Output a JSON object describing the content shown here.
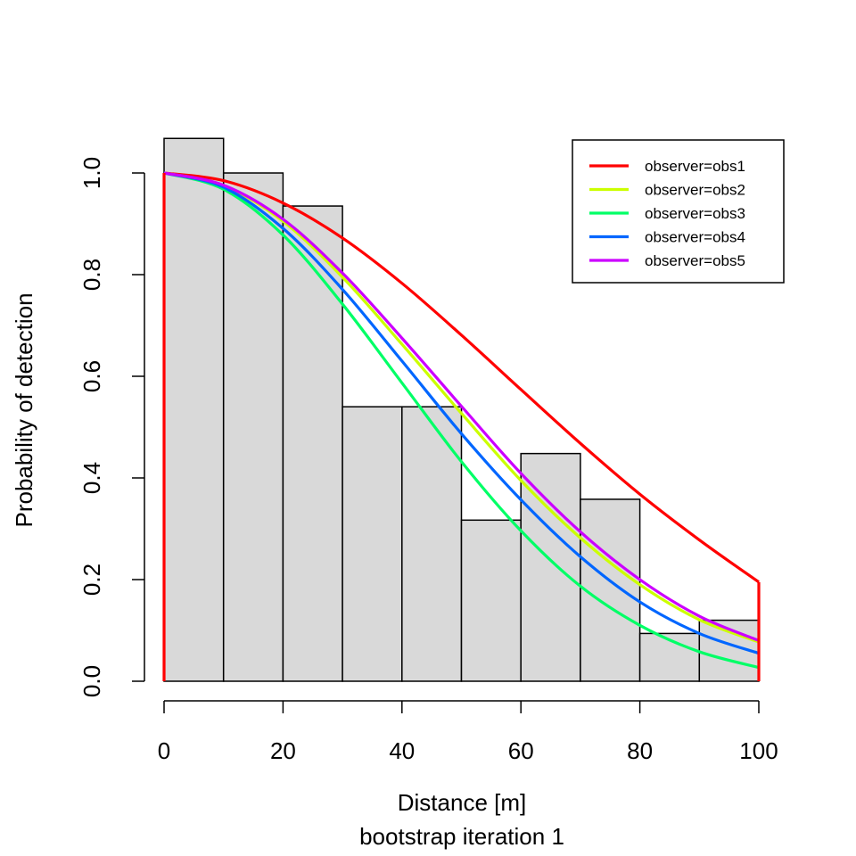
{
  "chart_data": {
    "type": "bar",
    "xlabel": "Distance [m]",
    "subtitle": "bootstrap iteration 1",
    "ylabel": "Probability of detection",
    "xlim": [
      0,
      100
    ],
    "ylim": [
      0,
      1.0
    ],
    "xticks": [
      "0",
      "20",
      "40",
      "60",
      "80",
      "100"
    ],
    "yticks": [
      "0.0",
      "0.2",
      "0.4",
      "0.6",
      "0.8",
      "1.0"
    ],
    "grid": false,
    "legend_position": "top-right",
    "histogram": {
      "bin_edges": [
        0,
        10,
        20,
        30,
        40,
        50,
        60,
        70,
        80,
        90,
        100
      ],
      "values": [
        1.068,
        1.0,
        0.935,
        0.54,
        0.54,
        0.317,
        0.448,
        0.358,
        0.094,
        0.12
      ],
      "fill": "#d9d9d9"
    },
    "series": [
      {
        "name": "observer=obs1",
        "color": "#ff0000",
        "x": [
          0,
          10,
          20,
          30,
          40,
          50,
          60,
          70,
          80,
          90,
          100
        ],
        "values": [
          1.0,
          0.985,
          0.941,
          0.872,
          0.783,
          0.681,
          0.574,
          0.468,
          0.368,
          0.278,
          0.195
        ]
      },
      {
        "name": "observer=obs2",
        "color": "#ccff00",
        "x": [
          0,
          10,
          20,
          30,
          40,
          50,
          60,
          70,
          80,
          90,
          100
        ],
        "values": [
          1.0,
          0.975,
          0.905,
          0.795,
          0.663,
          0.527,
          0.395,
          0.282,
          0.19,
          0.121,
          0.077
        ]
      },
      {
        "name": "observer=obs3",
        "color": "#00ff66",
        "x": [
          0,
          10,
          20,
          30,
          40,
          50,
          60,
          70,
          80,
          90,
          100
        ],
        "values": [
          1.0,
          0.968,
          0.878,
          0.742,
          0.587,
          0.432,
          0.296,
          0.187,
          0.11,
          0.058,
          0.027
        ]
      },
      {
        "name": "observer=obs4",
        "color": "#0066ff",
        "x": [
          0,
          10,
          20,
          30,
          40,
          50,
          60,
          70,
          80,
          90,
          100
        ],
        "values": [
          1.0,
          0.972,
          0.891,
          0.771,
          0.63,
          0.487,
          0.357,
          0.245,
          0.156,
          0.094,
          0.055
        ]
      },
      {
        "name": "observer=obs5",
        "color": "#cc00ff",
        "x": [
          0,
          10,
          20,
          30,
          40,
          50,
          60,
          70,
          80,
          90,
          100
        ],
        "values": [
          1.0,
          0.976,
          0.909,
          0.803,
          0.675,
          0.541,
          0.409,
          0.294,
          0.2,
          0.128,
          0.08
        ]
      }
    ]
  }
}
